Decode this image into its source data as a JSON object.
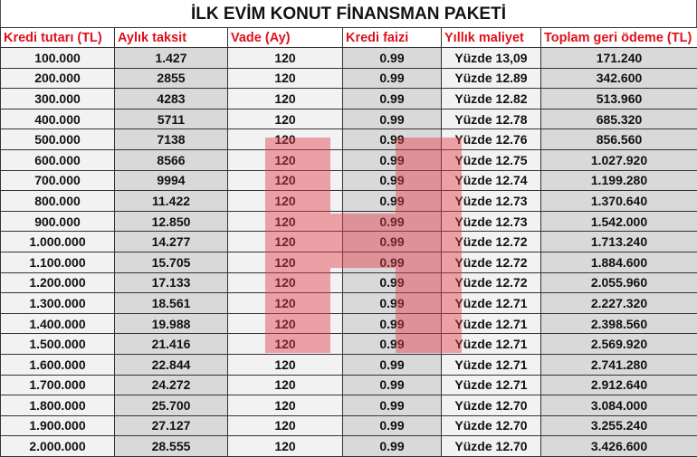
{
  "title": "İLK EVİM KONUT FİNANSMAN PAKETİ",
  "headers": [
    "Kredi tutarı (TL)",
    "Aylık taksit",
    "Vade (Ay)",
    "Kredi faizi",
    "Yıllık maliyet",
    "Toplam geri ödeme (TL)"
  ],
  "rows": [
    [
      "100.000",
      "1.427",
      "120",
      "0.99",
      "Yüzde 13,09",
      "171.240"
    ],
    [
      "200.000",
      "2855",
      "120",
      "0.99",
      "Yüzde 12.89",
      "342.600"
    ],
    [
      "300.000",
      "4283",
      "120",
      "0.99",
      "Yüzde 12.82",
      "513.960"
    ],
    [
      "400.000",
      "5711",
      "120",
      "0.99",
      "Yüzde 12.78",
      "685.320"
    ],
    [
      "500.000",
      "7138",
      "120",
      "0.99",
      "Yüzde 12.76",
      "856.560"
    ],
    [
      "600.000",
      "8566",
      "120",
      "0.99",
      "Yüzde 12.75",
      "1.027.920"
    ],
    [
      "700.000",
      "9994",
      "120",
      "0.99",
      "Yüzde 12.74",
      "1.199.280"
    ],
    [
      "800.000",
      "11.422",
      "120",
      "0.99",
      "Yüzde 12.73",
      "1.370.640"
    ],
    [
      "900.000",
      "12.850",
      "120",
      "0.99",
      "Yüzde 12.73",
      "1.542.000"
    ],
    [
      "1.000.000",
      "14.277",
      "120",
      "0.99",
      "Yüzde 12.72",
      "1.713.240"
    ],
    [
      "1.100.000",
      "15.705",
      "120",
      "0.99",
      "Yüzde 12.72",
      "1.884.600"
    ],
    [
      "1.200.000",
      "17.133",
      "120",
      "0.99",
      "Yüzde 12.72",
      "2.055.960"
    ],
    [
      "1.300.000",
      "18.561",
      "120",
      "0.99",
      "Yüzde 12.71",
      "2.227.320"
    ],
    [
      "1.400.000",
      "19.988",
      "120",
      "0.99",
      "Yüzde 12.71",
      "2.398.560"
    ],
    [
      "1.500.000",
      "21.416",
      "120",
      "0.99",
      "Yüzde 12.71",
      "2.569.920"
    ],
    [
      "1.600.000",
      "22.844",
      "120",
      "0.99",
      "Yüzde 12.71",
      "2.741.280"
    ],
    [
      "1.700.000",
      "24.272",
      "120",
      "0.99",
      "Yüzde 12.71",
      "2.912.640"
    ],
    [
      "1.800.000",
      "25.700",
      "120",
      "0.99",
      "Yüzde 12.70",
      "3.084.000"
    ],
    [
      "1.900.000",
      "27.127",
      "120",
      "0.99",
      "Yüzde 12.70",
      "3.255.240"
    ],
    [
      "2.000.000",
      "28.555",
      "120",
      "0.99",
      "Yüzde 12.70",
      "3.426.600"
    ]
  ],
  "colors": {
    "header_text": "#e0101a",
    "light_col": "#f2f2f2",
    "dark_col": "#d9d9d9",
    "watermark": "#e13c46"
  }
}
